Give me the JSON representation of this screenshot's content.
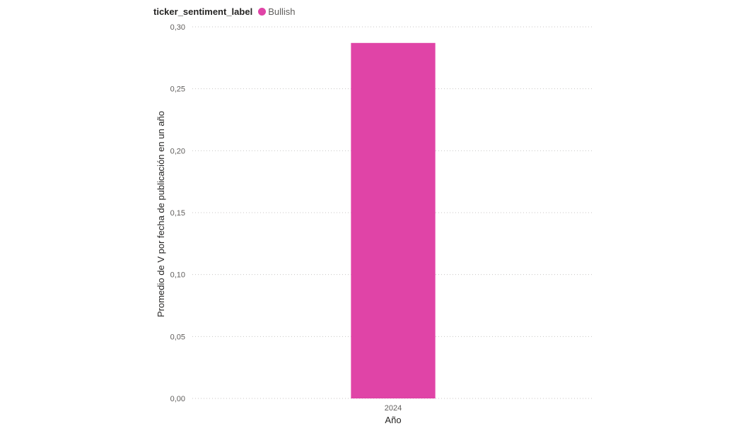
{
  "legend": {
    "title": "ticker_sentiment_label",
    "items": [
      {
        "label": "Bullish",
        "color": "#e044a7"
      }
    ]
  },
  "chart_data": {
    "type": "bar",
    "categories": [
      "2024"
    ],
    "series": [
      {
        "name": "Bullish",
        "values": [
          0.287
        ],
        "color": "#e044a7"
      }
    ],
    "xlabel": "Año",
    "ylabel": "Promedio de V por fecha de publicación en un año",
    "ylim": [
      0,
      0.3
    ],
    "yticks": [
      0.0,
      0.05,
      0.1,
      0.15,
      0.2,
      0.25,
      0.3
    ],
    "ytick_labels": [
      "0,00",
      "0,05",
      "0,10",
      "0,15",
      "0,20",
      "0,25",
      "0,30"
    ],
    "grid": true,
    "legend_position": "top-left"
  }
}
